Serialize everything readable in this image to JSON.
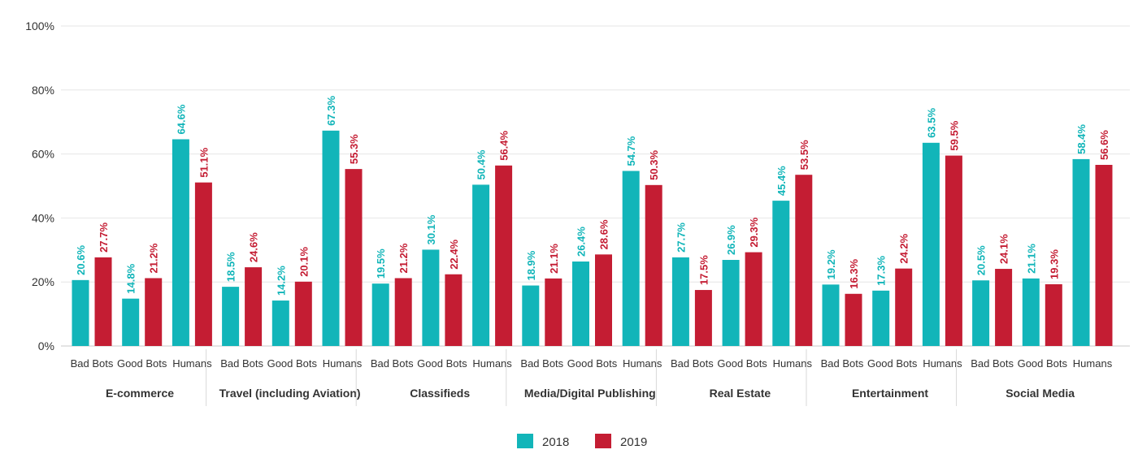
{
  "chart_data": {
    "type": "bar",
    "title": "",
    "xlabel": "",
    "ylabel": "",
    "ylim": [
      0,
      100
    ],
    "yticks": [
      "0%",
      "20%",
      "40%",
      "60%",
      "80%",
      "100%"
    ],
    "grid": true,
    "legend_position": "bottom-center",
    "groups": [
      "E-commerce",
      "Travel (including Aviation)",
      "Classifieds",
      "Media/Digital Publishing",
      "Real Estate",
      "Entertainment",
      "Social Media"
    ],
    "categories": [
      "Bad Bots",
      "Good Bots",
      "Humans"
    ],
    "series": [
      {
        "name": "2018",
        "color": "#12b5b9",
        "values": [
          [
            20.6,
            14.8,
            64.6
          ],
          [
            18.5,
            14.2,
            67.3
          ],
          [
            19.5,
            30.1,
            50.4
          ],
          [
            18.9,
            26.4,
            54.7
          ],
          [
            27.7,
            26.9,
            45.4
          ],
          [
            19.2,
            17.3,
            63.5
          ],
          [
            20.5,
            21.1,
            58.4
          ]
        ],
        "labels": [
          [
            "20.6%",
            "14.8%",
            "64.6%"
          ],
          [
            "18.5%",
            "14.2%",
            "67.3%"
          ],
          [
            "19.5%",
            "30.1%",
            "50.4%"
          ],
          [
            "18.9%",
            "26.4%",
            "54.7%"
          ],
          [
            "27.7%",
            "26.9%",
            "45.4%"
          ],
          [
            "19.2%",
            "17.3%",
            "63.5%"
          ],
          [
            "20.5%",
            "21.1%",
            "58.4%"
          ]
        ]
      },
      {
        "name": "2019",
        "color": "#c41d33",
        "values": [
          [
            27.7,
            21.2,
            51.1
          ],
          [
            24.6,
            20.1,
            55.3
          ],
          [
            21.2,
            22.4,
            56.4
          ],
          [
            21.1,
            28.6,
            50.3
          ],
          [
            17.5,
            29.3,
            53.5
          ],
          [
            16.3,
            24.2,
            59.5
          ],
          [
            24.1,
            19.3,
            56.6
          ]
        ],
        "labels": [
          [
            "27.7%",
            "21.2%",
            "51.1%"
          ],
          [
            "24.6%",
            "20.1%",
            "55.3%"
          ],
          [
            "21.2%",
            "22.4%",
            "56.4%"
          ],
          [
            "21.1%",
            "28.6%",
            "50.3%"
          ],
          [
            "17.5%",
            "29.3%",
            "53.5%"
          ],
          [
            "16.3%",
            "24.2%",
            "59.5%"
          ],
          [
            "24.1%",
            "19.3%",
            "56.6%"
          ]
        ]
      }
    ]
  }
}
